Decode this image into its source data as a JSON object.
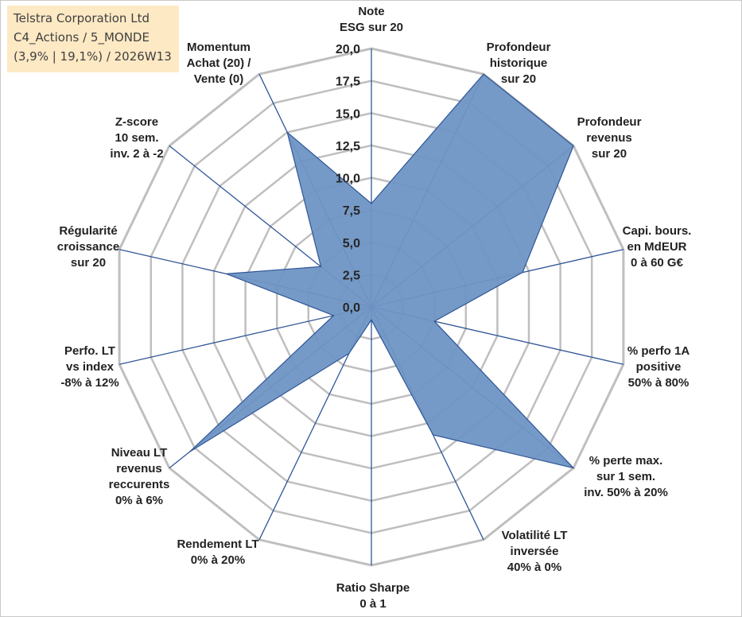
{
  "info_box": {
    "line1": "Telstra Corporation Ltd",
    "line2": "C4_Actions / 5_MONDE",
    "line3": "(3,9% | 19,1%) / 2026W13"
  },
  "chart_data": {
    "type": "radar",
    "title": "",
    "rmax": 20,
    "ticks": [
      0,
      2.5,
      5,
      7.5,
      10,
      12.5,
      15,
      17.5,
      20
    ],
    "tick_labels": [
      "0,0",
      "2,5",
      "5,0",
      "7,5",
      "10,0",
      "12,5",
      "15,0",
      "17,5",
      "20,0"
    ],
    "axes": [
      {
        "lines": [
          "Note",
          "ESG sur 20"
        ],
        "value": 8.0
      },
      {
        "lines": [
          "Profondeur",
          "historique",
          "sur 20"
        ],
        "value": 20.0
      },
      {
        "lines": [
          "Profondeur",
          "revenus",
          "sur 20"
        ],
        "value": 20.0
      },
      {
        "lines": [
          "Capi. bours.",
          "en MdEUR",
          "0 à 60 G€"
        ],
        "value": 12.0
      },
      {
        "lines": [
          "% perfo 1A",
          "positive",
          "50% à 80%"
        ],
        "value": 5.0
      },
      {
        "lines": [
          "% perte max.",
          "sur 1 sem.",
          "inv. 50% à 20%"
        ],
        "value": 20.0
      },
      {
        "lines": [
          "Volatilité LT",
          "inversée",
          "40% à 0%"
        ],
        "value": 11.0
      },
      {
        "lines": [
          "Ratio Sharpe",
          "0 à 1"
        ],
        "value": 1.0
      },
      {
        "lines": [
          "Rendement LT",
          "0% à 20%"
        ],
        "value": 4.0
      },
      {
        "lines": [
          "Niveau LT",
          "revenus",
          "reccurents",
          "0% à 6%"
        ],
        "value": 18.0
      },
      {
        "lines": [
          "Perfo. LT",
          "vs index",
          "-8% à 12%"
        ],
        "value": 3.0
      },
      {
        "lines": [
          "Régularité",
          "croissance",
          "sur 20"
        ],
        "value": 11.5
      },
      {
        "lines": [
          "Z-score",
          "10 sem.",
          "inv. 2 à -2"
        ],
        "value": 5.0
      },
      {
        "lines": [
          "Momentum",
          "Achat (20) /",
          "Vente (0)"
        ],
        "value": 15.0
      }
    ],
    "series": [
      {
        "name": "Telstra Corporation Ltd",
        "fill": "#6f95c4",
        "stroke": "#2f5597"
      }
    ],
    "grid_color": "#bfbfbf",
    "spoke_color": "#2f5597"
  }
}
